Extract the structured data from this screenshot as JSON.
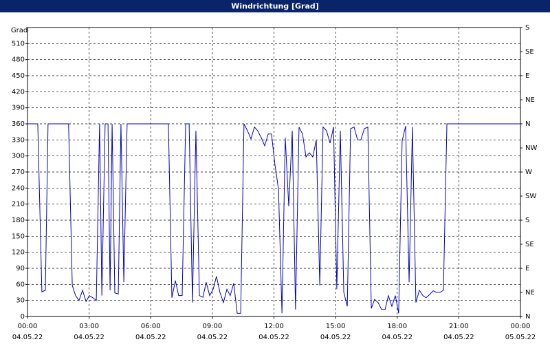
{
  "chart_data": {
    "type": "line",
    "title": "Windrichtung [Grad]",
    "y_label": "Grad",
    "color": "#0000c8",
    "grid": true,
    "xlim": [
      0,
      24
    ],
    "xticks": [
      {
        "value": 0,
        "label": "00:00"
      },
      {
        "value": 3,
        "label": "03:00"
      },
      {
        "value": 6,
        "label": "06:00"
      },
      {
        "value": 9,
        "label": "09:00"
      },
      {
        "value": 12,
        "label": "12:00"
      },
      {
        "value": 15,
        "label": "15:00"
      },
      {
        "value": 18,
        "label": "18:00"
      },
      {
        "value": 21,
        "label": "21:00"
      },
      {
        "value": 24,
        "label": "00:00"
      }
    ],
    "xtick_dates": [
      "04.05.22",
      "04.05.22",
      "04.05.22",
      "04.05.22",
      "04.05.22",
      "04.05.22",
      "04.05.22",
      "04.05.22",
      "05.05.22"
    ],
    "ylim": [
      0,
      540
    ],
    "yticks": [
      0,
      30,
      60,
      90,
      120,
      150,
      180,
      210,
      240,
      270,
      300,
      330,
      360,
      390,
      420,
      450,
      480,
      510
    ],
    "y2lim": [
      0,
      540
    ],
    "y2ticks": [
      {
        "value": 0,
        "label": "N"
      },
      {
        "value": 45,
        "label": "NE"
      },
      {
        "value": 90,
        "label": "E"
      },
      {
        "value": 135,
        "label": "SE"
      },
      {
        "value": 180,
        "label": "S"
      },
      {
        "value": 225,
        "label": "SW"
      },
      {
        "value": 270,
        "label": "W"
      },
      {
        "value": 315,
        "label": "NW"
      },
      {
        "value": 360,
        "label": "N"
      },
      {
        "value": 405,
        "label": "NE"
      },
      {
        "value": 450,
        "label": "E"
      },
      {
        "value": 495,
        "label": "SE"
      },
      {
        "value": 540,
        "label": "S"
      }
    ],
    "x": [
      0,
      0.5,
      0.7,
      0.87,
      1.0,
      2.0,
      2.18,
      2.34,
      2.51,
      2.68,
      2.85,
      3.01,
      3.18,
      3.35,
      3.51,
      3.62,
      3.78,
      3.92,
      4.02,
      4.12,
      4.25,
      4.42,
      4.55,
      4.69,
      4.85,
      6.86,
      7.03,
      7.2,
      7.36,
      7.53,
      7.7,
      7.87,
      8.03,
      8.2,
      8.37,
      8.54,
      8.7,
      8.87,
      9.04,
      9.2,
      9.37,
      9.54,
      9.71,
      9.87,
      10.04,
      10.21,
      10.38,
      10.54,
      10.71,
      10.88,
      11.05,
      11.21,
      11.38,
      11.55,
      11.72,
      11.88,
      12.05,
      12.22,
      12.39,
      12.55,
      12.72,
      12.89,
      13.05,
      13.22,
      13.39,
      13.56,
      13.72,
      13.89,
      14.06,
      14.23,
      14.39,
      14.56,
      14.73,
      14.9,
      15.06,
      15.23,
      15.4,
      15.57,
      15.73,
      15.9,
      16.07,
      16.23,
      16.4,
      16.57,
      16.74,
      16.9,
      17.07,
      17.24,
      17.41,
      17.57,
      17.74,
      17.91,
      18.07,
      18.24,
      18.41,
      18.58,
      18.74,
      18.91,
      19.08,
      19.25,
      19.41,
      19.58,
      19.75,
      19.92,
      20.08,
      20.25,
      20.42,
      24
    ],
    "values": [
      360,
      360,
      46,
      49,
      360,
      360,
      58,
      39,
      30,
      49,
      28,
      39,
      35,
      30,
      360,
      39,
      360,
      360,
      49,
      360,
      44,
      42,
      360,
      64,
      360,
      360,
      35,
      67,
      39,
      39,
      360,
      360,
      26,
      347,
      39,
      36,
      64,
      39,
      51,
      75,
      45,
      26,
      51,
      39,
      62,
      6,
      6,
      360,
      347,
      332,
      354,
      347,
      334,
      319,
      341,
      341,
      283,
      238,
      6,
      334,
      206,
      347,
      13,
      354,
      341,
      298,
      306,
      298,
      330,
      58,
      354,
      347,
      324,
      354,
      51,
      347,
      45,
      19,
      351,
      354,
      330,
      330,
      351,
      354,
      15,
      32,
      26,
      13,
      13,
      39,
      19,
      39,
      6,
      328,
      356,
      64,
      354,
      26,
      49,
      39,
      35,
      41,
      48,
      45,
      45,
      49,
      360,
      360
    ]
  }
}
